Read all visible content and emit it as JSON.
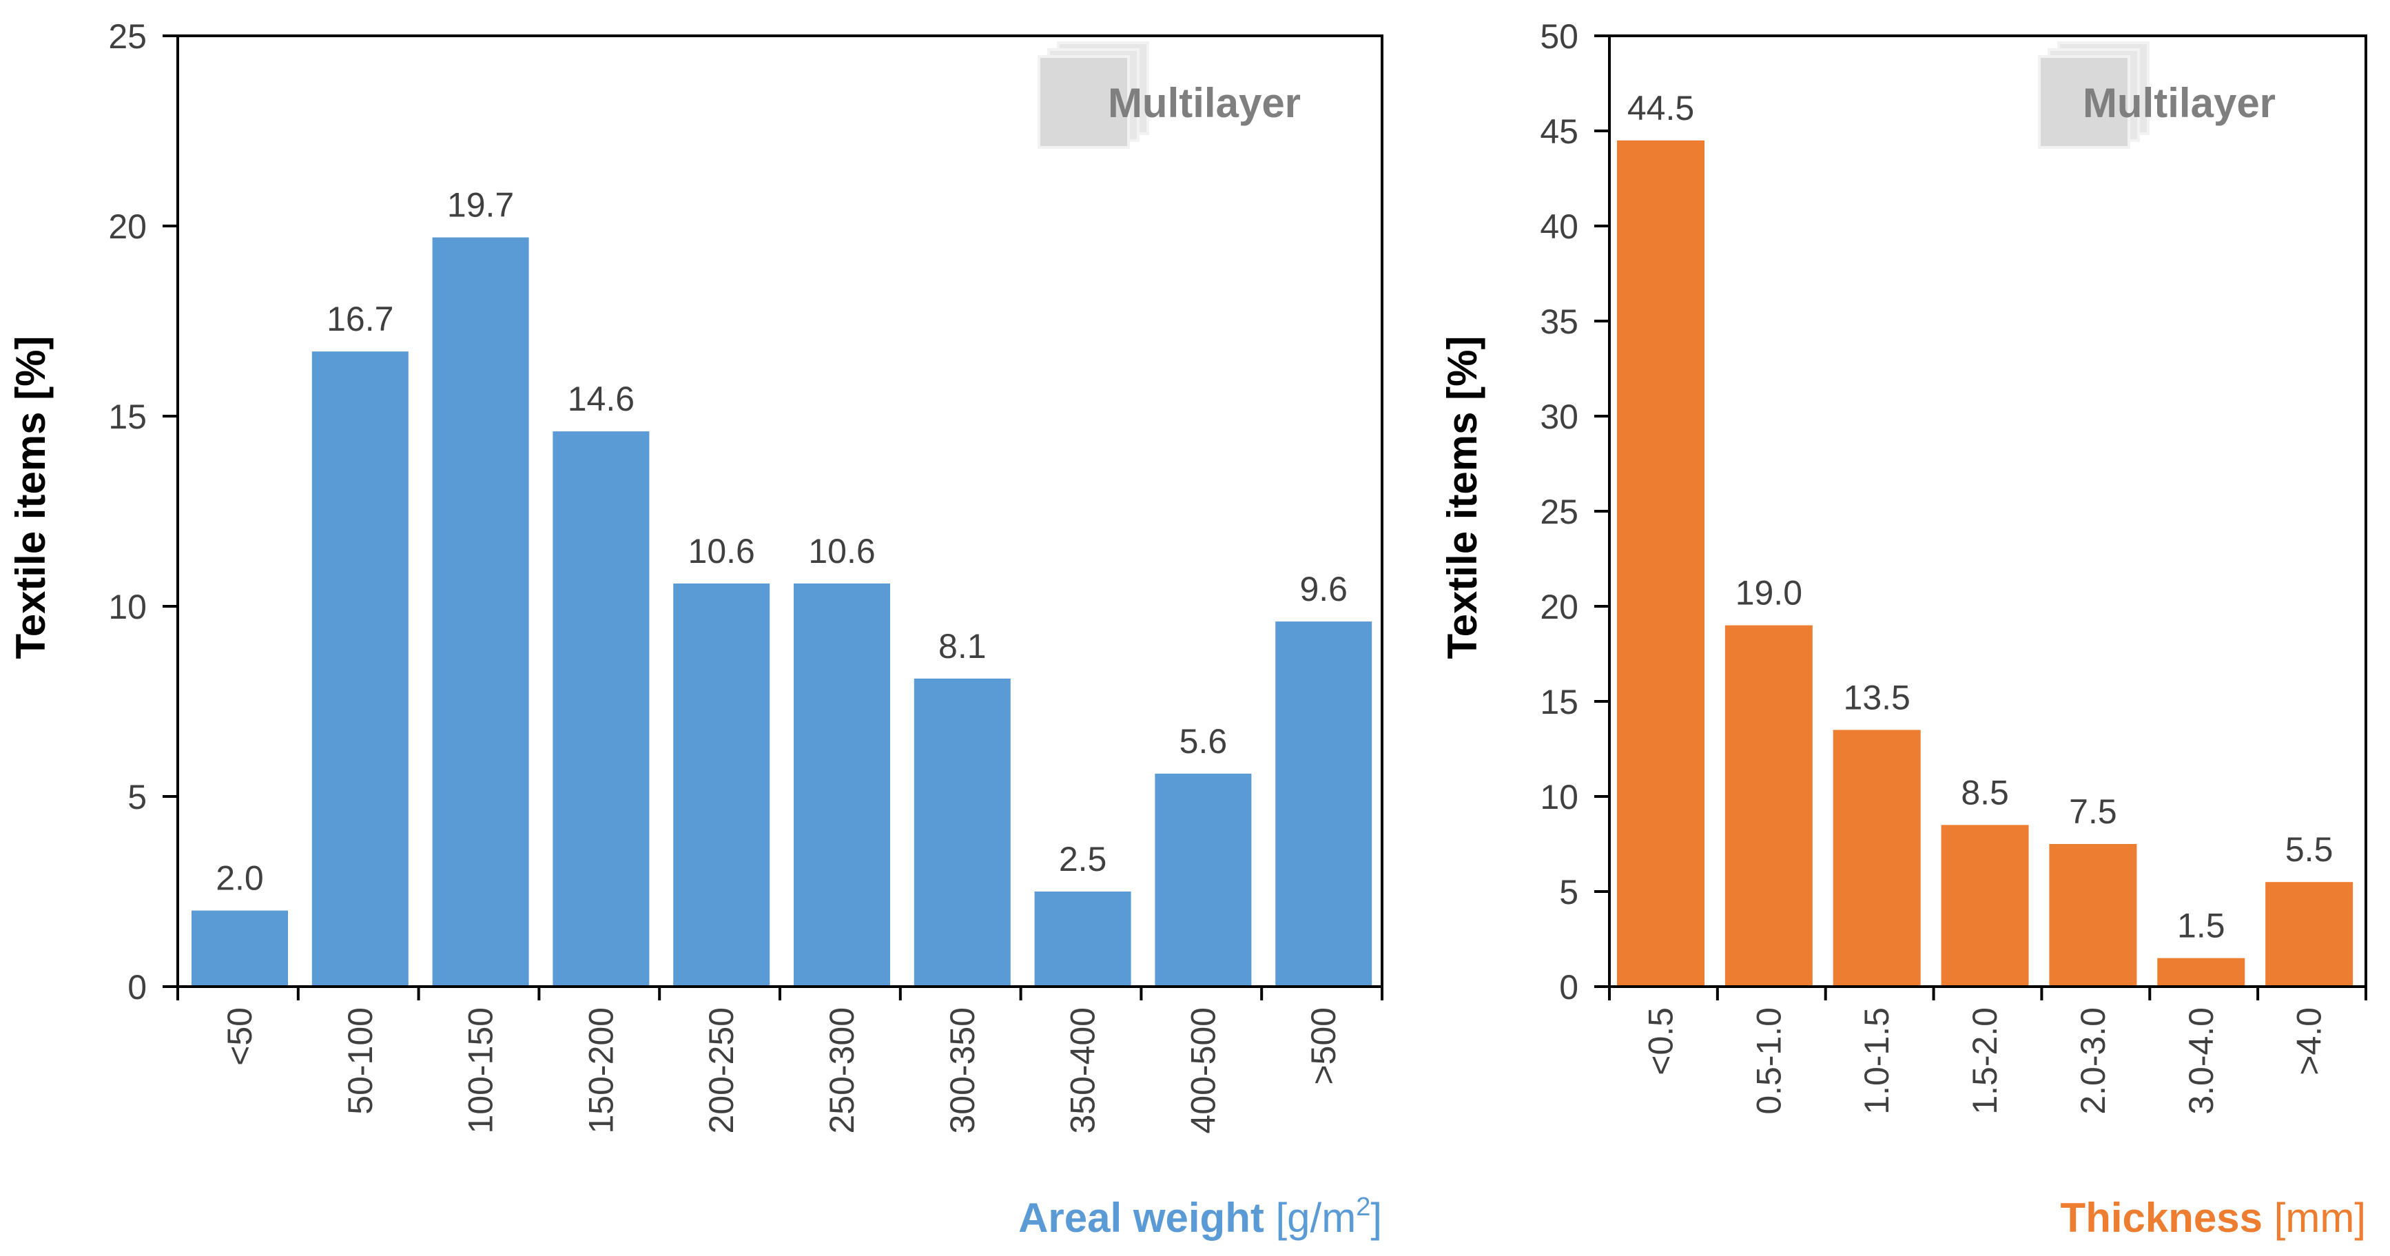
{
  "chart_data": [
    {
      "type": "bar",
      "ylabel": "Textile items [%]",
      "xlabel_bold": "Areal weight",
      "xlabel_unit_open": " [g/m",
      "xlabel_unit_sup": "2",
      "xlabel_unit_close": "]",
      "badge": "Multilayer",
      "ylim": [
        0,
        25
      ],
      "yticks": [
        0,
        5,
        10,
        15,
        20,
        25
      ],
      "categories": [
        "<50",
        "50-100",
        "100-150",
        "150-200",
        "200-250",
        "250-300",
        "300-350",
        "350-400",
        "400-500",
        ">500"
      ],
      "values": [
        2.0,
        16.7,
        19.7,
        14.6,
        10.6,
        10.6,
        8.1,
        2.5,
        5.6,
        9.6
      ],
      "data_labels": [
        "2.0",
        "16.7",
        "19.7",
        "14.6",
        "10.6",
        "10.6",
        "8.1",
        "2.5",
        "5.6",
        "9.6"
      ],
      "color": "#5b9bd5",
      "grid": false
    },
    {
      "type": "bar",
      "ylabel": "Textile items [%]",
      "xlabel_bold": "Thickness",
      "xlabel_unit_open": " [mm]",
      "xlabel_unit_sup": "",
      "xlabel_unit_close": "",
      "badge": "Multilayer",
      "ylim": [
        0,
        50
      ],
      "yticks": [
        0,
        5,
        10,
        15,
        20,
        25,
        30,
        35,
        40,
        45,
        50
      ],
      "categories": [
        "<0.5",
        "0.5-1.0",
        "1.0-1.5",
        "1.5-2.0",
        "2.0-3.0",
        "3.0-4.0",
        ">4.0"
      ],
      "values": [
        44.5,
        19.0,
        13.5,
        8.5,
        7.5,
        1.5,
        5.5
      ],
      "data_labels": [
        "44.5",
        "19.0",
        "13.5",
        "8.5",
        "7.5",
        "1.5",
        "5.5"
      ],
      "color": "#ed7d31",
      "grid": false
    }
  ]
}
